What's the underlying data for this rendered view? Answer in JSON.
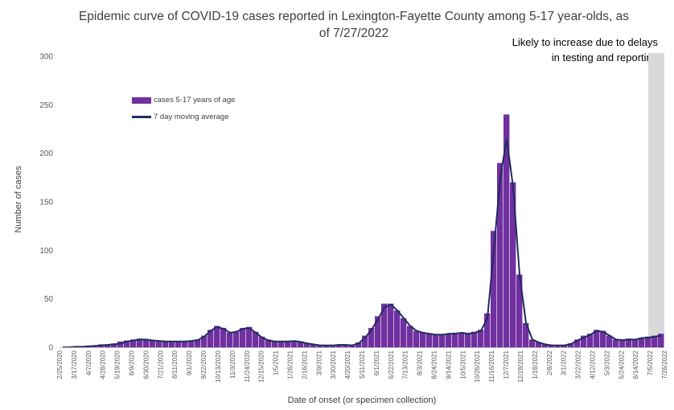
{
  "chart_data": {
    "type": "bar",
    "title": "Epidemic curve of COVID-19 cases reported in Lexington-Fayette County among 5-17 year-olds, as of 7/27/2022",
    "title_lines": [
      "Epidemic curve of COVID-19 cases reported in Lexington-Fayette County among 5-17 year-olds, as",
      "of 7/27/2022"
    ],
    "xlabel": "Date of onset (or specimen collection)",
    "ylabel": "Number of cases",
    "ylim": [
      0,
      300
    ],
    "yticks": [
      0,
      50,
      100,
      150,
      200,
      250,
      300
    ],
    "grid": false,
    "legend_position": "top-left",
    "x_start": "2/25/2020",
    "x_end": "7/26/2022",
    "annotation": "Likely to increase due to delays in testing and reporting",
    "shaded_period": [
      "7/14/2022",
      "7/26/2022"
    ],
    "x_tick_labels": [
      "2/25/2020",
      "3/17/2020",
      "4/7/2020",
      "4/28/2020",
      "5/19/2020",
      "6/9/2020",
      "6/30/2020",
      "7/21/2020",
      "8/11/2020",
      "9/1/2020",
      "9/22/2020",
      "10/13/2020",
      "11/3/2020",
      "11/24/2020",
      "12/15/2020",
      "1/5/2021",
      "1/26/2021",
      "2/16/2021",
      "3/9/2021",
      "3/30/2021",
      "4/20/2021",
      "5/11/2021",
      "6/1/2021",
      "6/22/2021",
      "7/13/2021",
      "8/3/2021",
      "8/24/2021",
      "9/14/2021",
      "10/5/2021",
      "10/26/2021",
      "11/16/2021",
      "12/7/2021",
      "12/28/2021",
      "1/18/2022",
      "2/8/2022",
      "3/1/2022",
      "3/22/2022",
      "4/12/2022",
      "5/3/2022",
      "5/24/2022",
      "6/14/2022",
      "7/5/2022",
      "7/26/2022"
    ],
    "series": [
      {
        "name": "cases 5-17 years of age",
        "kind": "bar",
        "color": "#7030a0",
        "values": [
          0,
          0,
          1,
          1,
          1,
          2,
          3,
          3,
          4,
          6,
          7,
          8,
          9,
          8,
          7,
          7,
          6,
          6,
          6,
          6,
          7,
          8,
          12,
          18,
          22,
          20,
          15,
          16,
          20,
          21,
          16,
          11,
          8,
          6,
          6,
          6,
          7,
          6,
          4,
          3,
          2,
          2,
          2,
          3,
          3,
          2,
          5,
          12,
          20,
          32,
          45,
          45,
          38,
          30,
          22,
          17,
          15,
          14,
          13,
          13,
          14,
          15,
          15,
          14,
          16,
          18,
          35,
          120,
          190,
          240,
          170,
          75,
          25,
          8,
          5,
          3,
          2,
          2,
          2,
          4,
          8,
          12,
          14,
          18,
          17,
          12,
          8,
          8,
          9,
          8,
          10,
          11,
          12,
          14
        ]
      },
      {
        "name": "7 day moving average",
        "kind": "line",
        "color": "#1f2d5e",
        "values": [
          0,
          0,
          0.5,
          0.5,
          1,
          1.5,
          2,
          2.5,
          3,
          4,
          6,
          7,
          8,
          8,
          7,
          6.5,
          6,
          6,
          6,
          6,
          6.5,
          7.5,
          11,
          17,
          21,
          19,
          15,
          16,
          19,
          20,
          15,
          10,
          7,
          6,
          6,
          6,
          6.5,
          5.5,
          4,
          3,
          2,
          2,
          2,
          2.5,
          2.5,
          2,
          4,
          10,
          18,
          29,
          41,
          44,
          38,
          30,
          22,
          17,
          15,
          14,
          13,
          13,
          14,
          14,
          15,
          14,
          15,
          17,
          30,
          100,
          175,
          215,
          165,
          75,
          25,
          8,
          5,
          3,
          2,
          2,
          2,
          3.5,
          7,
          10,
          13,
          17,
          16,
          12,
          8,
          7.5,
          8,
          8,
          9.5,
          10,
          11,
          12
        ]
      }
    ]
  }
}
